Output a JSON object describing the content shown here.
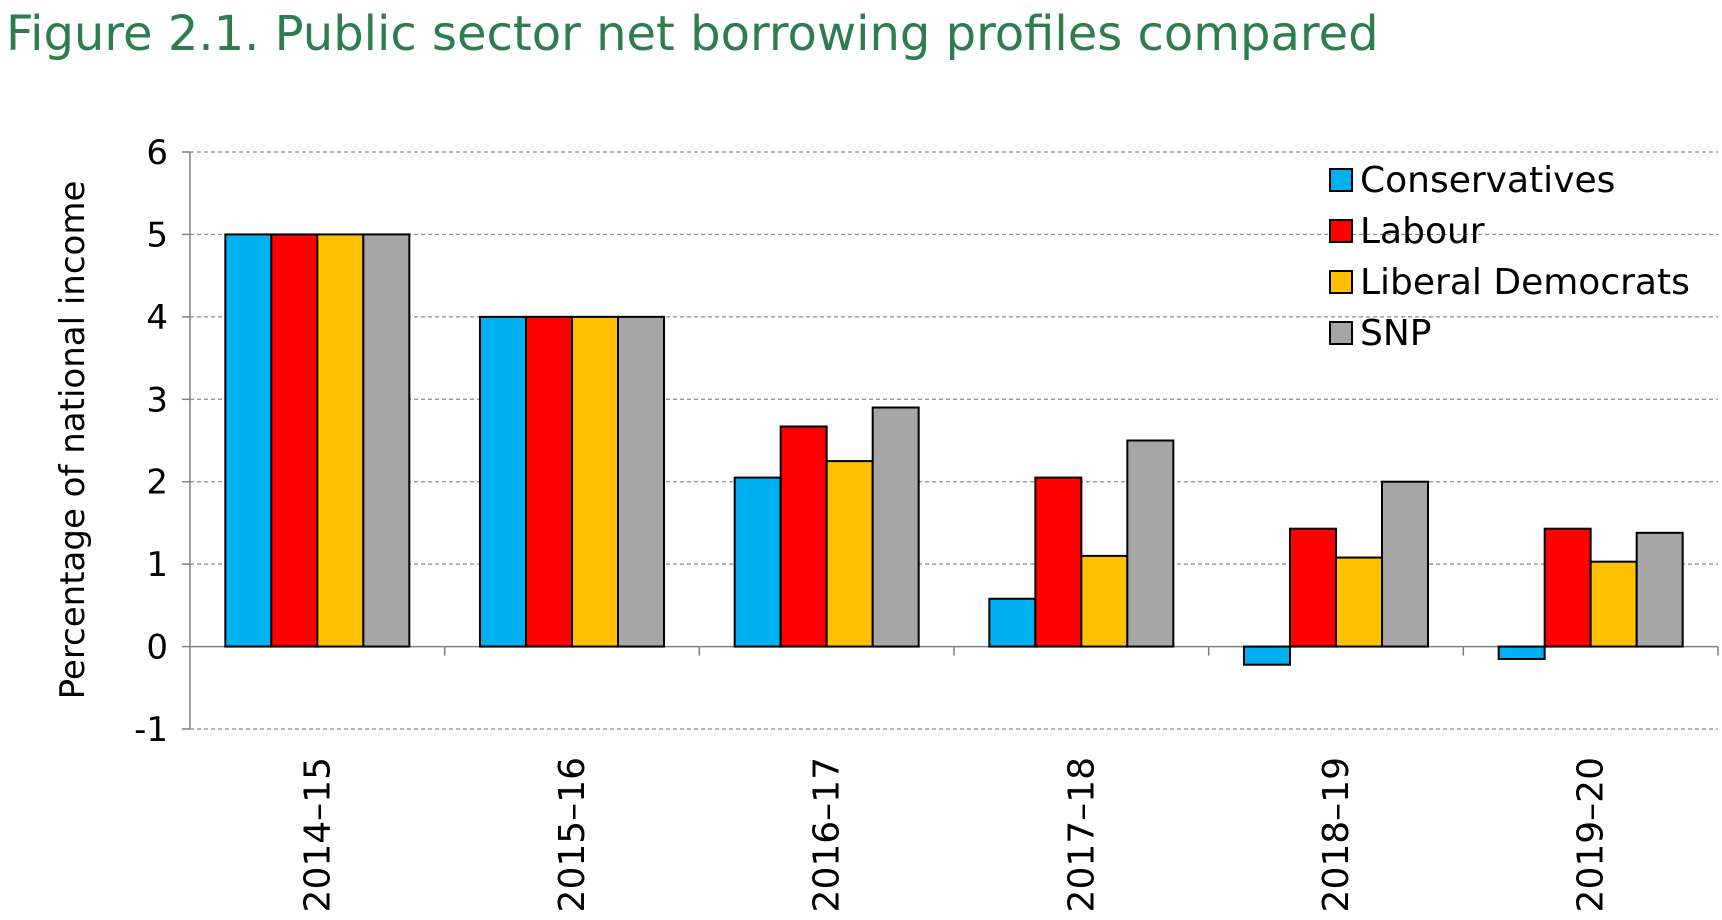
{
  "title": "Figure 2.1. Public sector net borrowing profiles compared",
  "colors": {
    "title": "#2e7d4f",
    "gridline": "#8c8c8c",
    "axis": "#808080",
    "bar_outline": "#000000"
  },
  "chart_data": {
    "type": "bar",
    "title": "Figure 2.1. Public sector net borrowing profiles compared",
    "xlabel": "",
    "ylabel": "Percentage of national income",
    "ylim": [
      -1,
      6
    ],
    "yticks": [
      "-1",
      "0",
      "1",
      "2",
      "3",
      "4",
      "5",
      "6"
    ],
    "grid": true,
    "legend_position": "top-right",
    "categories": [
      "2014–15",
      "2015–16",
      "2016–17",
      "2017–18",
      "2018–19",
      "2019–20"
    ],
    "series": [
      {
        "name": "Conservatives",
        "color": "#00b0f0",
        "values": [
          5.0,
          4.0,
          2.05,
          0.58,
          -0.22,
          -0.15
        ]
      },
      {
        "name": "Labour",
        "color": "#ff0000",
        "values": [
          5.0,
          4.0,
          2.67,
          2.05,
          1.43,
          1.43
        ]
      },
      {
        "name": "Liberal Democrats",
        "color": "#ffc000",
        "values": [
          5.0,
          4.0,
          2.25,
          1.1,
          1.08,
          1.03
        ]
      },
      {
        "name": "SNP",
        "color": "#a6a6a6",
        "values": [
          5.0,
          4.0,
          2.9,
          2.5,
          2.0,
          1.38
        ]
      }
    ]
  }
}
